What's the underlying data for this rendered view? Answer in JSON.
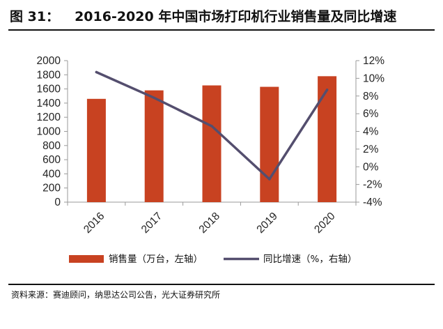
{
  "figure": {
    "label": "图 31：",
    "title": "2016-2020 年中国市场打印机行业销售量及同比增速"
  },
  "source": "资料来源：赛迪顾问，纳思达公司公告，光大证券研究所",
  "chart_data": {
    "type": "bar",
    "categories": [
      "2016",
      "2017",
      "2018",
      "2019",
      "2020"
    ],
    "series": [
      {
        "name": "销售量（万台，左轴）",
        "type": "bar",
        "axis": "left",
        "color": "#c84221",
        "values": [
          1460,
          1580,
          1650,
          1630,
          1780
        ]
      },
      {
        "name": "同比增速（%，右轴）",
        "type": "line",
        "axis": "right",
        "color": "#544e6e",
        "values": [
          10.7,
          7.8,
          4.6,
          -1.4,
          8.7
        ]
      }
    ],
    "y_left": {
      "min": 0,
      "max": 2000,
      "step": 200,
      "tick_labels": [
        "0",
        "200",
        "400",
        "600",
        "800",
        "1000",
        "1200",
        "1400",
        "1600",
        "1800",
        "2000"
      ]
    },
    "y_right": {
      "min": -4,
      "max": 12,
      "step": 2,
      "tick_labels": [
        "-4%",
        "-2%",
        "0%",
        "2%",
        "4%",
        "6%",
        "8%",
        "10%",
        "12%"
      ]
    },
    "grid": false,
    "legend_position": "bottom"
  }
}
